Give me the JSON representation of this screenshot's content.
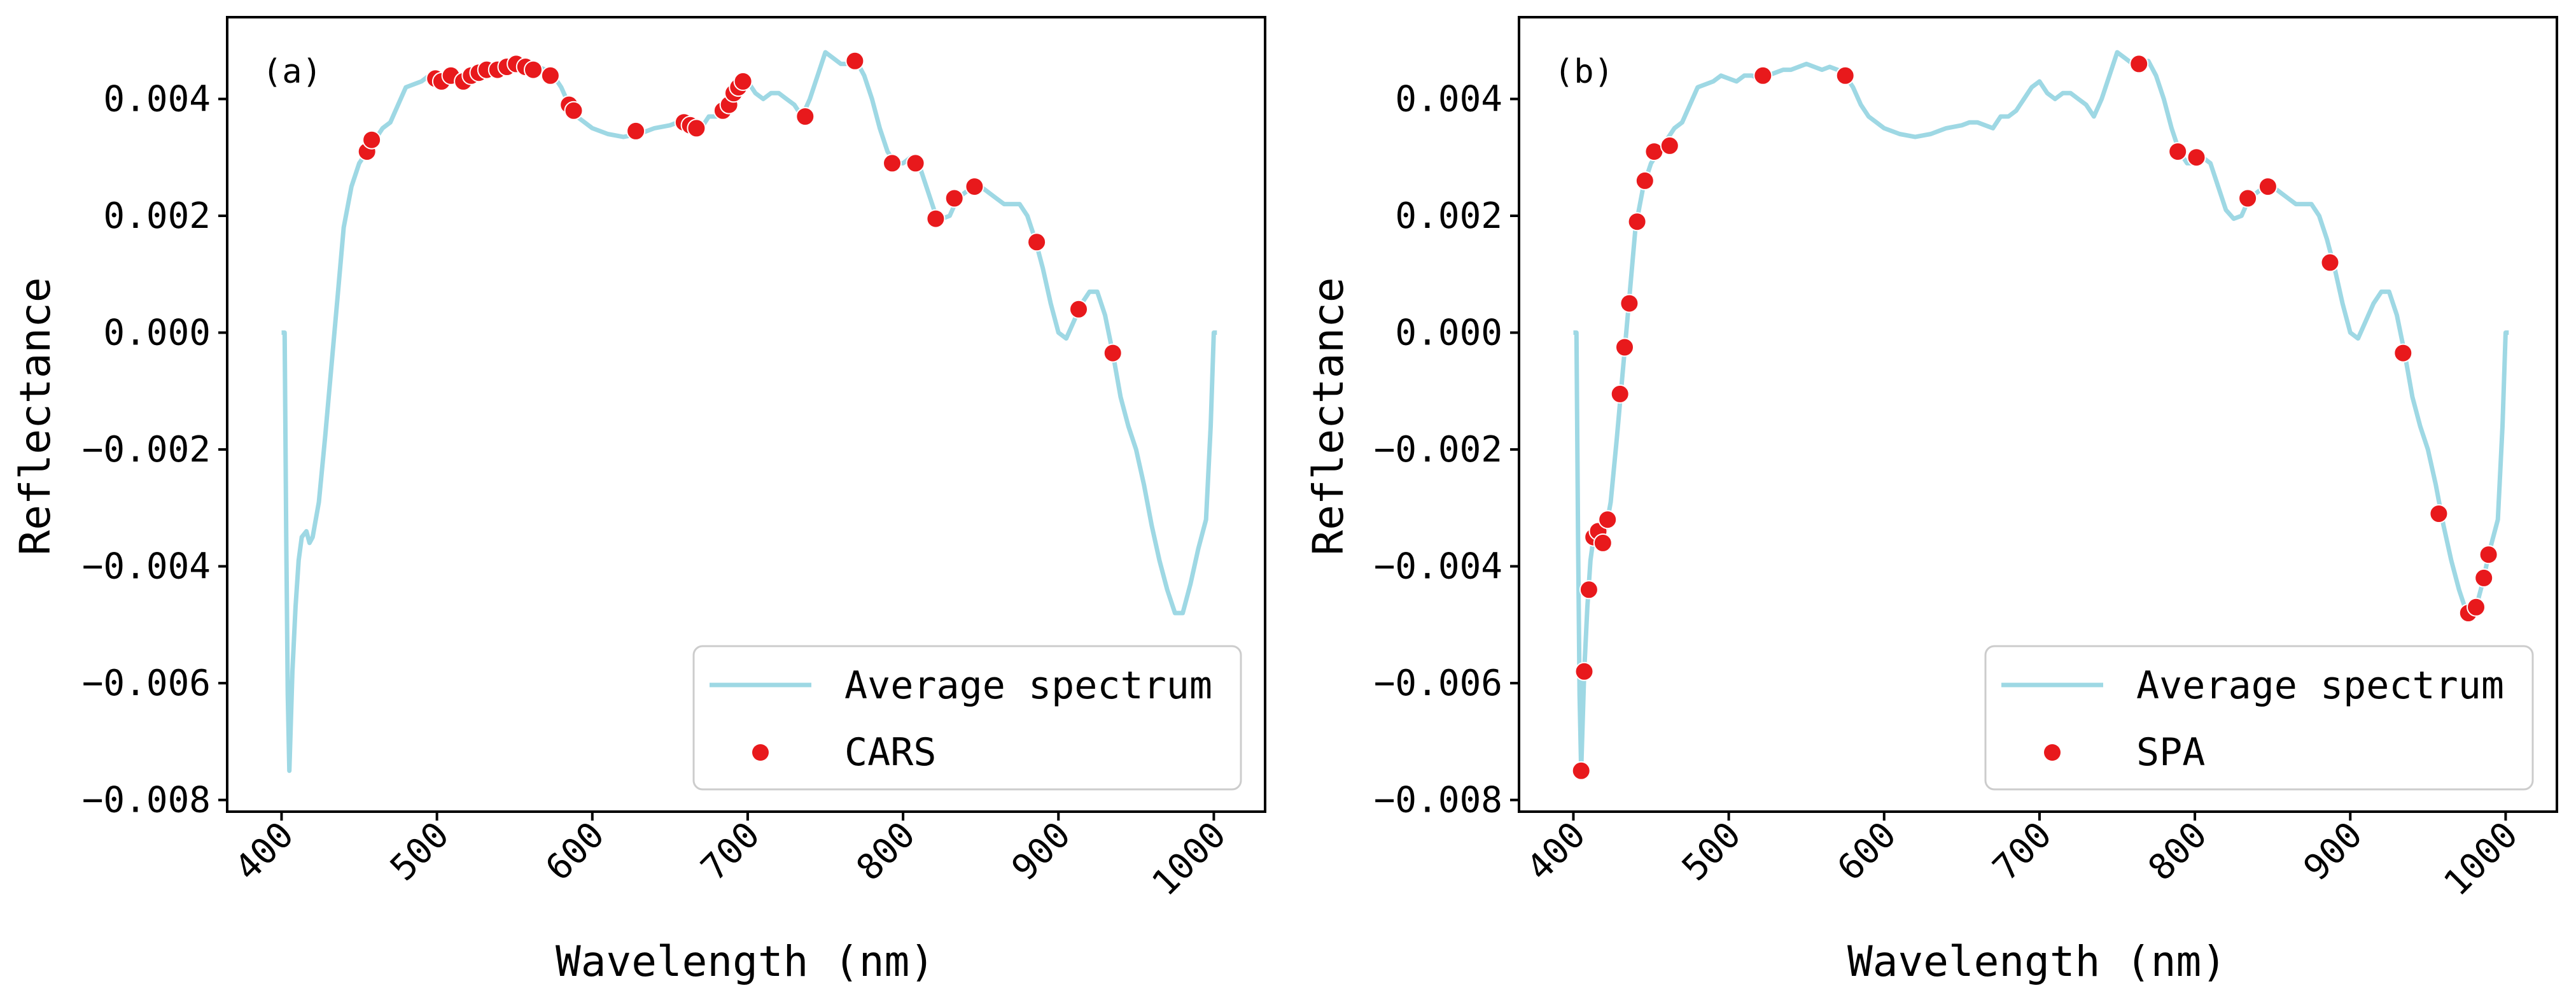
{
  "figure": {
    "ylabel": "Reflectance",
    "xlabel": "Wavelength (nm)"
  },
  "colors": {
    "line": "#9ED8E4",
    "marker": "#E8191C",
    "axis": "#000000",
    "legend_border": "#CCCCCC"
  },
  "chart_data": [
    {
      "type": "line+scatter",
      "panel_label": "(a)",
      "xlabel": "Wavelength (nm)",
      "ylabel": "Reflectance",
      "xlim": [
        365,
        1033
      ],
      "ylim": [
        -0.0082,
        0.0054
      ],
      "xticks": [
        400,
        500,
        600,
        700,
        800,
        900,
        1000
      ],
      "xtick_labels": [
        "400",
        "500",
        "600",
        "700",
        "800",
        "900",
        "1000"
      ],
      "yticks": [
        -0.008,
        -0.006,
        -0.004,
        -0.002,
        0,
        0.002,
        0.004
      ],
      "ytick_labels": [
        "−0.008",
        "−0.006",
        "−0.004",
        "−0.002",
        "0.000",
        "0.002",
        "0.004"
      ],
      "legend": {
        "position": "lower right",
        "line_label": "Average spectrum",
        "scatter_label": "CARS"
      },
      "selected_points": [
        [
          455,
          0.0031
        ],
        [
          458,
          0.0033
        ],
        [
          499,
          0.00435
        ],
        [
          503,
          0.0043
        ],
        [
          509,
          0.0044
        ],
        [
          517,
          0.0043
        ],
        [
          522,
          0.0044
        ],
        [
          527,
          0.00445
        ],
        [
          532,
          0.0045
        ],
        [
          539,
          0.0045
        ],
        [
          545,
          0.00455
        ],
        [
          551,
          0.0046
        ],
        [
          557,
          0.00455
        ],
        [
          562,
          0.0045
        ],
        [
          573,
          0.0044
        ],
        [
          585,
          0.0039
        ],
        [
          588,
          0.0038
        ],
        [
          628,
          0.00345
        ],
        [
          659,
          0.0036
        ],
        [
          663,
          0.00355
        ],
        [
          667,
          0.0035
        ],
        [
          684,
          0.0038
        ],
        [
          688,
          0.0039
        ],
        [
          691,
          0.0041
        ],
        [
          694,
          0.0042
        ],
        [
          697,
          0.0043
        ],
        [
          737,
          0.0037
        ],
        [
          769,
          0.00465
        ],
        [
          793,
          0.0029
        ],
        [
          808,
          0.0029
        ],
        [
          821,
          0.00195
        ],
        [
          833,
          0.0023
        ],
        [
          846,
          0.0025
        ],
        [
          886,
          0.00155
        ],
        [
          913,
          0.0004
        ],
        [
          935,
          -0.00035
        ]
      ]
    },
    {
      "type": "line+scatter",
      "panel_label": "(b)",
      "xlabel": "Wavelength (nm)",
      "ylabel": "Reflectance",
      "xlim": [
        365,
        1033
      ],
      "ylim": [
        -0.0082,
        0.0054
      ],
      "xticks": [
        400,
        500,
        600,
        700,
        800,
        900,
        1000
      ],
      "xtick_labels": [
        "400",
        "500",
        "600",
        "700",
        "800",
        "900",
        "1000"
      ],
      "yticks": [
        -0.008,
        -0.006,
        -0.004,
        -0.002,
        0,
        0.002,
        0.004
      ],
      "ytick_labels": [
        "−0.008",
        "−0.006",
        "−0.004",
        "−0.002",
        "0.000",
        "0.002",
        "0.004"
      ],
      "legend": {
        "position": "lower right",
        "line_label": "Average spectrum",
        "scatter_label": "SPA"
      },
      "selected_points": [
        [
          405,
          -0.0075
        ],
        [
          407,
          -0.0058
        ],
        [
          410,
          -0.0044
        ],
        [
          413,
          -0.0035
        ],
        [
          416,
          -0.0034
        ],
        [
          419,
          -0.0036
        ],
        [
          422,
          -0.0032
        ],
        [
          430,
          -0.00105
        ],
        [
          433,
          -0.00025
        ],
        [
          436,
          0.0005
        ],
        [
          441,
          0.0019
        ],
        [
          446,
          0.0026
        ],
        [
          452,
          0.0031
        ],
        [
          462,
          0.0032
        ],
        [
          522,
          0.0044
        ],
        [
          575,
          0.0044
        ],
        [
          764,
          0.0046
        ],
        [
          789,
          0.0031
        ],
        [
          801,
          0.003
        ],
        [
          834,
          0.0023
        ],
        [
          847,
          0.0025
        ],
        [
          887,
          0.0012
        ],
        [
          934,
          -0.00035
        ],
        [
          957,
          -0.0031
        ],
        [
          976,
          -0.0048
        ],
        [
          981,
          -0.0047
        ],
        [
          986,
          -0.0042
        ],
        [
          989,
          -0.0038
        ]
      ]
    }
  ],
  "spectrum": {
    "name": "Average spectrum",
    "points": [
      [
        400,
        0
      ],
      [
        402,
        0
      ],
      [
        403,
        -0.0035
      ],
      [
        404,
        -0.0062
      ],
      [
        405,
        -0.0075
      ],
      [
        407,
        -0.0058
      ],
      [
        409,
        -0.0047
      ],
      [
        411,
        -0.0039
      ],
      [
        413,
        -0.0035
      ],
      [
        416,
        -0.0034
      ],
      [
        418,
        -0.0036
      ],
      [
        420,
        -0.0035
      ],
      [
        424,
        -0.0029
      ],
      [
        428,
        -0.0018
      ],
      [
        432,
        -0.0006
      ],
      [
        436,
        0.0006
      ],
      [
        440,
        0.0018
      ],
      [
        445,
        0.0025
      ],
      [
        450,
        0.0029
      ],
      [
        455,
        0.0031
      ],
      [
        460,
        0.0033
      ],
      [
        465,
        0.0035
      ],
      [
        470,
        0.0036
      ],
      [
        475,
        0.0039
      ],
      [
        480,
        0.0042
      ],
      [
        485,
        0.00425
      ],
      [
        490,
        0.0043
      ],
      [
        495,
        0.0044
      ],
      [
        500,
        0.00435
      ],
      [
        505,
        0.0043
      ],
      [
        510,
        0.0044
      ],
      [
        515,
        0.0044
      ],
      [
        520,
        0.00435
      ],
      [
        525,
        0.0044
      ],
      [
        530,
        0.00445
      ],
      [
        535,
        0.0045
      ],
      [
        540,
        0.0045
      ],
      [
        545,
        0.00455
      ],
      [
        550,
        0.0046
      ],
      [
        555,
        0.00455
      ],
      [
        560,
        0.0045
      ],
      [
        565,
        0.00455
      ],
      [
        570,
        0.0045
      ],
      [
        575,
        0.0044
      ],
      [
        580,
        0.0042
      ],
      [
        585,
        0.0039
      ],
      [
        590,
        0.0037
      ],
      [
        595,
        0.0036
      ],
      [
        600,
        0.0035
      ],
      [
        610,
        0.0034
      ],
      [
        620,
        0.00335
      ],
      [
        630,
        0.0034
      ],
      [
        640,
        0.0035
      ],
      [
        650,
        0.00355
      ],
      [
        655,
        0.0036
      ],
      [
        660,
        0.0036
      ],
      [
        665,
        0.00355
      ],
      [
        670,
        0.0035
      ],
      [
        675,
        0.0037
      ],
      [
        680,
        0.0037
      ],
      [
        685,
        0.0038
      ],
      [
        690,
        0.004
      ],
      [
        695,
        0.0042
      ],
      [
        700,
        0.0043
      ],
      [
        705,
        0.0041
      ],
      [
        710,
        0.004
      ],
      [
        715,
        0.0041
      ],
      [
        720,
        0.0041
      ],
      [
        725,
        0.004
      ],
      [
        730,
        0.0039
      ],
      [
        735,
        0.0037
      ],
      [
        740,
        0.004
      ],
      [
        745,
        0.0044
      ],
      [
        750,
        0.0048
      ],
      [
        755,
        0.0047
      ],
      [
        760,
        0.0046
      ],
      [
        765,
        0.0046
      ],
      [
        770,
        0.00465
      ],
      [
        775,
        0.0044
      ],
      [
        780,
        0.004
      ],
      [
        785,
        0.0035
      ],
      [
        790,
        0.0031
      ],
      [
        795,
        0.0029
      ],
      [
        800,
        0.0029
      ],
      [
        805,
        0.003
      ],
      [
        810,
        0.0029
      ],
      [
        815,
        0.0025
      ],
      [
        820,
        0.0021
      ],
      [
        825,
        0.00195
      ],
      [
        830,
        0.002
      ],
      [
        835,
        0.0023
      ],
      [
        840,
        0.0024
      ],
      [
        845,
        0.0025
      ],
      [
        850,
        0.0025
      ],
      [
        855,
        0.0024
      ],
      [
        860,
        0.0023
      ],
      [
        865,
        0.0022
      ],
      [
        870,
        0.0022
      ],
      [
        875,
        0.0022
      ],
      [
        880,
        0.002
      ],
      [
        885,
        0.0016
      ],
      [
        890,
        0.0011
      ],
      [
        895,
        0.0005
      ],
      [
        900,
        0
      ],
      [
        905,
        -0.0001
      ],
      [
        910,
        0.0002
      ],
      [
        915,
        0.0005
      ],
      [
        920,
        0.0007
      ],
      [
        925,
        0.0007
      ],
      [
        930,
        0.0003
      ],
      [
        935,
        -0.00035
      ],
      [
        940,
        -0.0011
      ],
      [
        945,
        -0.0016
      ],
      [
        950,
        -0.002
      ],
      [
        955,
        -0.0026
      ],
      [
        960,
        -0.0033
      ],
      [
        965,
        -0.0039
      ],
      [
        970,
        -0.0044
      ],
      [
        975,
        -0.0048
      ],
      [
        980,
        -0.0048
      ],
      [
        985,
        -0.0043
      ],
      [
        990,
        -0.0037
      ],
      [
        995,
        -0.0032
      ],
      [
        998,
        -0.0016
      ],
      [
        1000,
        0
      ],
      [
        1002,
        0
      ]
    ]
  }
}
